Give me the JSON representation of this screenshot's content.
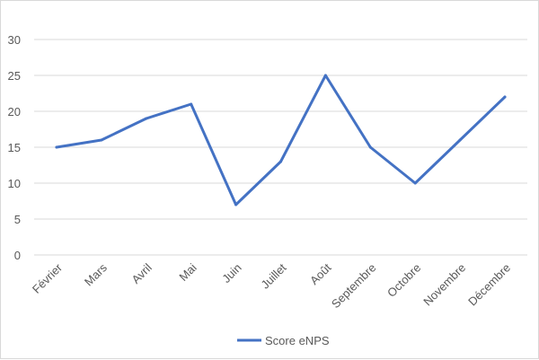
{
  "chart_data": {
    "type": "line",
    "title": "",
    "xlabel": "",
    "ylabel": "",
    "categories": [
      "Février",
      "Mars",
      "Avril",
      "Mai",
      "Juin",
      "Juillet",
      "Août",
      "Septembre",
      "Octobre",
      "Novembre",
      "Décembre"
    ],
    "series": [
      {
        "name": "Score eNPS",
        "color": "#4472c4",
        "values": [
          15,
          16,
          19,
          21,
          7,
          13,
          25,
          15,
          10,
          16,
          22
        ]
      }
    ],
    "ylim": [
      0,
      30
    ],
    "yticks": [
      0,
      5,
      10,
      15,
      20,
      25,
      30
    ],
    "grid": true,
    "legend": "bottom",
    "gridline_color": "#d9d9d9"
  }
}
